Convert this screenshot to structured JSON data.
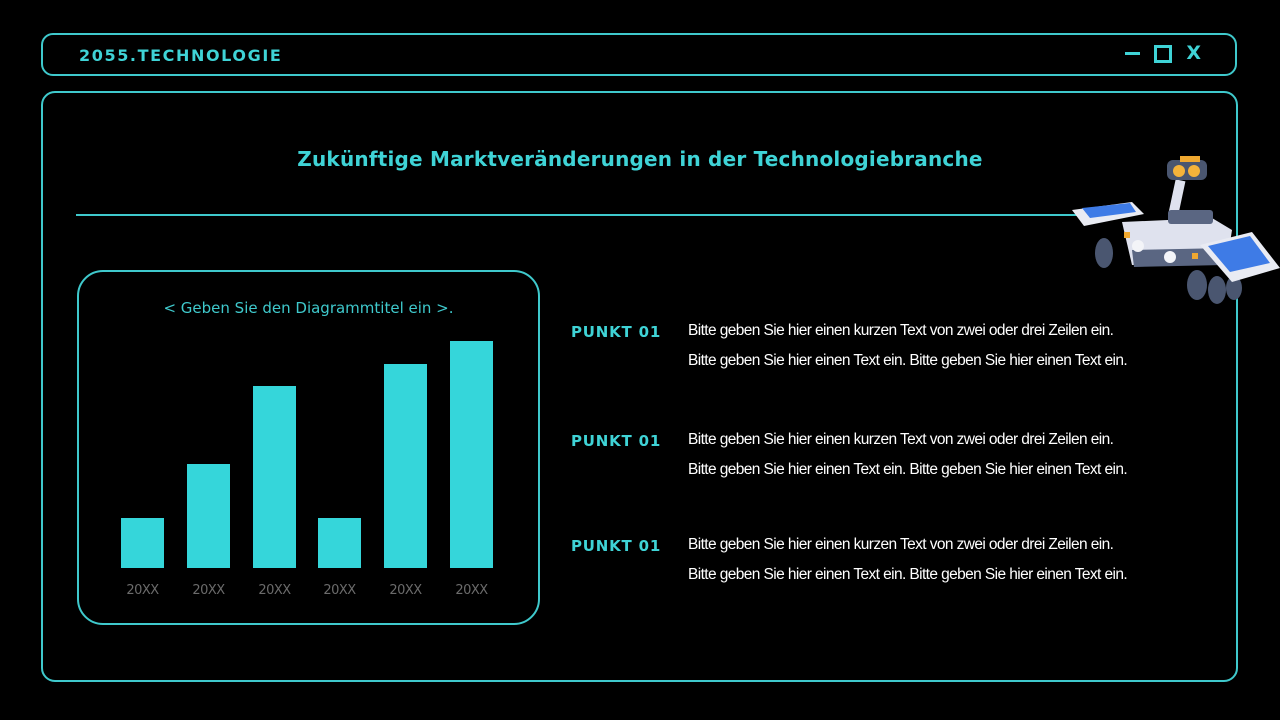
{
  "header": {
    "brand": "2055.TECHNOLOGIE",
    "controls": {
      "minimize_icon": "minimize-icon",
      "maximize_icon": "maximize-icon",
      "close_label": "X"
    }
  },
  "slide": {
    "title": "Zukünftige Marktveränderungen in der Technologiebranche"
  },
  "chart": {
    "title": "< Geben Sie den Diagrammtitel ein >.",
    "x_labels": [
      "20XX",
      "20XX",
      "20XX",
      "20XX",
      "20XX",
      "20XX"
    ]
  },
  "points": [
    {
      "label": "PUNKT 01",
      "line1": "Bitte geben Sie hier einen kurzen Text von zwei oder drei Zeilen ein.",
      "line2": "Bitte geben Sie hier einen Text ein. Bitte geben Sie hier einen Text ein."
    },
    {
      "label": "PUNKT 01",
      "line1": "Bitte geben Sie hier einen kurzen Text von zwei oder drei Zeilen ein.",
      "line2": "Bitte geben Sie hier einen Text ein. Bitte geben Sie hier einen Text ein."
    },
    {
      "label": "PUNKT 01",
      "line1": "Bitte geben Sie hier einen kurzen Text von zwei oder drei Zeilen ein.",
      "line2": "Bitte geben Sie hier einen Text ein. Bitte geben Sie hier einen Text ein."
    }
  ],
  "decoration": {
    "image": "mars-rover-illustration"
  },
  "colors": {
    "accent": "#3fd3d6",
    "bar": "#35d6da",
    "background": "#000000",
    "body_text": "#ffffff",
    "axis_label": "#6b6b6b"
  },
  "chart_data": {
    "type": "bar",
    "title": "< Geben Sie den Diagrammtitel ein >.",
    "categories": [
      "20XX",
      "20XX",
      "20XX",
      "20XX",
      "20XX",
      "20XX"
    ],
    "values": [
      1.1,
      2.3,
      4.0,
      1.1,
      4.5,
      5.0
    ],
    "xlabel": "",
    "ylabel": "",
    "ylim": [
      0,
      5
    ],
    "grid": false,
    "legend": "none",
    "y_axis_visible": false
  }
}
